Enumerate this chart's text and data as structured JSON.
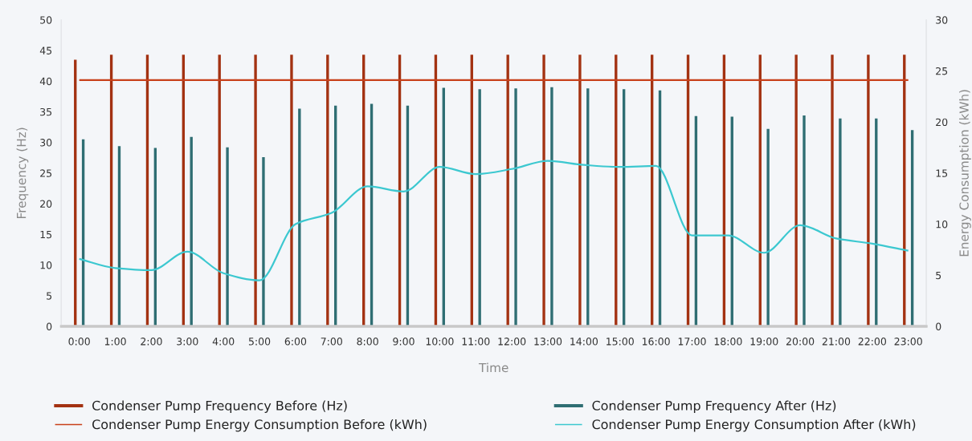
{
  "chart_data": {
    "type": "bar",
    "xlabel": "Time",
    "ylabel": "Frequency (Hz)",
    "y2label": "Energy Consumption (kWh)",
    "categories": [
      "0:00",
      "1:00",
      "2:00",
      "3:00",
      "4:00",
      "5:00",
      "6:00",
      "7:00",
      "8:00",
      "9:00",
      "10:00",
      "11:00",
      "12:00",
      "13:00",
      "14:00",
      "15:00",
      "16:00",
      "17:00",
      "18:00",
      "19:00",
      "20:00",
      "21:00",
      "22:00",
      "23:00"
    ],
    "series": [
      {
        "name": "Condenser Pump Frequency Before (Hz)",
        "color": "#a33212",
        "values": [
          43.5,
          44.3,
          44.3,
          44.3,
          44.3,
          44.3,
          44.3,
          44.3,
          44.3,
          44.3,
          44.3,
          44.3,
          44.3,
          44.3,
          44.3,
          44.3,
          44.3,
          44.3,
          44.3,
          44.3,
          44.3,
          44.3,
          44.3,
          44.3
        ]
      },
      {
        "name": "Condenser Pump Frequency After (Hz)",
        "color": "#2f6e73",
        "values": [
          30.5,
          29.4,
          29.1,
          30.9,
          29.2,
          27.6,
          35.5,
          36.0,
          36.3,
          36.0,
          38.9,
          38.7,
          38.8,
          39.0,
          38.8,
          38.7,
          38.5,
          34.3,
          34.2,
          32.2,
          34.4,
          33.9,
          33.9,
          32.0
        ]
      },
      {
        "name": "Condenser Pump Energy Consumption Before (kWh)",
        "type": "line",
        "axis": "y2",
        "color": "#c8401a",
        "values": [
          24.1,
          24.1,
          24.1,
          24.1,
          24.1,
          24.1,
          24.1,
          24.1,
          24.1,
          24.1,
          24.1,
          24.1,
          24.1,
          24.1,
          24.1,
          24.1,
          24.1,
          24.1,
          24.1,
          24.1,
          24.1,
          24.1,
          24.1,
          24.1
        ]
      },
      {
        "name": "Condenser Pump Energy Consumption After (kWh)",
        "type": "line",
        "axis": "y2",
        "color": "#3cc8d0",
        "values": [
          6.6,
          5.7,
          5.5,
          7.3,
          5.2,
          4.5,
          10.0,
          11.1,
          13.7,
          13.2,
          15.6,
          14.9,
          15.4,
          16.2,
          15.8,
          15.6,
          15.7,
          8.9,
          8.9,
          7.2,
          9.9,
          8.6,
          8.1,
          7.4
        ]
      }
    ],
    "ylim": [
      0,
      50
    ],
    "yticks": [
      0,
      5,
      10,
      15,
      20,
      25,
      30,
      35,
      40,
      45,
      50
    ],
    "y2lim": [
      0,
      30
    ],
    "y2ticks": [
      0,
      5,
      10,
      15,
      20,
      25,
      30
    ],
    "grid": false,
    "legend": "bottom",
    "marker": "none",
    "line_style": "solid"
  }
}
